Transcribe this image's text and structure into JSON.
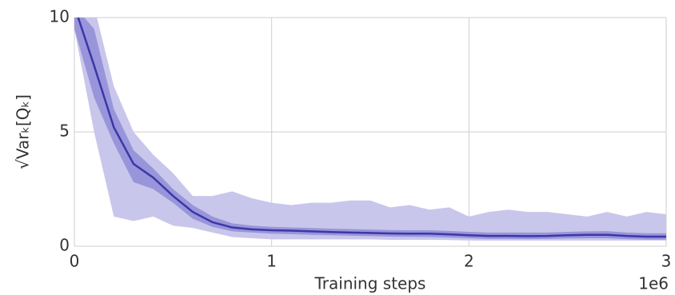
{
  "chart_data": {
    "type": "band-line",
    "ylabel": "√Varₖ[Qₖ]",
    "xlabel": "Training steps",
    "x_offset_label": "1e6",
    "xlim": [
      0,
      3
    ],
    "xticks": [
      0,
      1,
      2,
      3
    ],
    "ylim": [
      0,
      10
    ],
    "yticks": [
      0,
      5,
      10
    ],
    "grid": true,
    "x": [
      0,
      0.1,
      0.2,
      0.3,
      0.4,
      0.5,
      0.6,
      0.7,
      0.8,
      0.9,
      1.0,
      1.1,
      1.2,
      1.3,
      1.4,
      1.5,
      1.6,
      1.7,
      1.8,
      1.9,
      2.0,
      2.1,
      2.2,
      2.3,
      2.4,
      2.5,
      2.6,
      2.7,
      2.8,
      2.9,
      3.0
    ],
    "bands": [
      {
        "color": "#c9c6ec",
        "upper": [
          10.5,
          10.5,
          7,
          5.0,
          4,
          3.2,
          2.2,
          2.2,
          2.4,
          2.1,
          1.9,
          1.8,
          1.9,
          1.9,
          2.0,
          2.0,
          1.7,
          1.8,
          1.6,
          1.7,
          1.3,
          1.5,
          1.6,
          1.5,
          1.5,
          1.4,
          1.3,
          1.5,
          1.3,
          1.5,
          1.4
        ],
        "lower": [
          9.5,
          5,
          1.3,
          1.1,
          1.3,
          0.9,
          0.8,
          0.6,
          0.4,
          0.35,
          0.3,
          0.3,
          0.3,
          0.3,
          0.3,
          0.3,
          0.28,
          0.28,
          0.28,
          0.27,
          0.25,
          0.25,
          0.25,
          0.25,
          0.25,
          0.25,
          0.25,
          0.25,
          0.25,
          0.25,
          0.25
        ]
      },
      {
        "color": "#9995da",
        "upper": [
          10.5,
          9.5,
          6,
          4.2,
          3.4,
          2.5,
          1.8,
          1.3,
          1.0,
          0.9,
          0.85,
          0.82,
          0.8,
          0.77,
          0.75,
          0.73,
          0.71,
          0.7,
          0.7,
          0.67,
          0.63,
          0.6,
          0.6,
          0.6,
          0.6,
          0.63,
          0.65,
          0.66,
          0.6,
          0.57,
          0.57
        ],
        "lower": [
          9.5,
          6.5,
          4.5,
          2.8,
          2.5,
          1.9,
          1.2,
          0.85,
          0.65,
          0.6,
          0.55,
          0.53,
          0.5,
          0.48,
          0.46,
          0.44,
          0.42,
          0.41,
          0.4,
          0.38,
          0.35,
          0.32,
          0.32,
          0.31,
          0.32,
          0.34,
          0.35,
          0.35,
          0.31,
          0.29,
          0.29
        ]
      }
    ],
    "line": {
      "color": "#3c37a8",
      "values": [
        10.5,
        7.9,
        5.2,
        3.6,
        3.0,
        2.2,
        1.5,
        1.05,
        0.82,
        0.74,
        0.7,
        0.68,
        0.65,
        0.62,
        0.6,
        0.58,
        0.56,
        0.55,
        0.55,
        0.52,
        0.48,
        0.45,
        0.45,
        0.44,
        0.45,
        0.48,
        0.5,
        0.5,
        0.45,
        0.42,
        0.42
      ]
    }
  }
}
